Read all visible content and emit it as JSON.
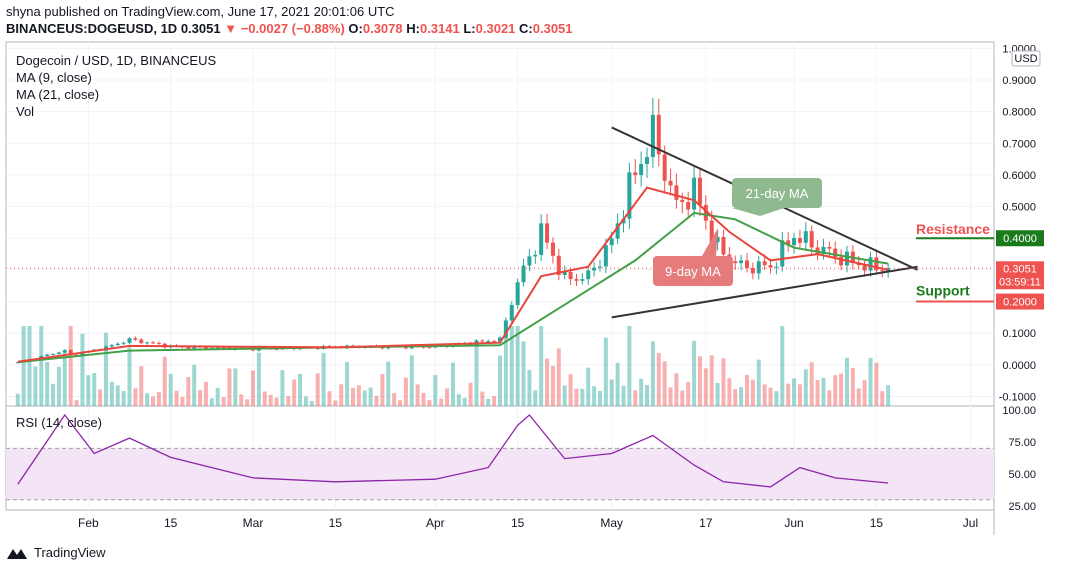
{
  "header": {
    "publisher_line": "shyna published on TradingView.com, June 17, 2021 20:01:06 UTC",
    "symbol": "BINANCEUS:DOGEUSD, 1D",
    "last": "0.3051",
    "change": "−0.0027 (−0.88%)",
    "o_label": "O:",
    "o": "0.3078",
    "h_label": "H:",
    "h": "0.3141",
    "l_label": "L:",
    "l": "0.3021",
    "c_label": "C:",
    "c": "0.3051"
  },
  "legend": {
    "title": "Dogecoin / USD, 1D, BINANCEUS",
    "ma9": "MA (9, close)",
    "ma21": "MA (21, close)",
    "vol": "Vol"
  },
  "currency": "USD",
  "price_badge": {
    "price": "0.3051",
    "countdown": "03:59:11"
  },
  "resistance_badge": "0.4000",
  "support_badge": "0.2000",
  "annotations": {
    "resistance": "Resistance",
    "support": "Support",
    "ma21_callout": "21-day MA",
    "ma9_callout": "9-day MA"
  },
  "rsi_label": "RSI (14, close)",
  "footer_brand": "TradingView",
  "colors": {
    "up": "#26a69a",
    "down": "#ef5350",
    "ma9": "#e8453c",
    "ma21": "#43a047",
    "rsi": "#8e24aa",
    "rsi_band": "#f3e5f5",
    "resistance": "#1b7a1b",
    "support": "#1b7a1b"
  },
  "chart_data": [
    {
      "type": "candlestick",
      "title": "Dogecoin / USD, 1D, BINANCEUS",
      "ylim": [
        -0.13,
        1.02
      ],
      "y_ticks": [
        "1.0000",
        "0.9000",
        "0.8000",
        "0.7000",
        "0.6000",
        "0.5000",
        "0.4000",
        "0.3000",
        "0.2000",
        "0.1000",
        "0.0000",
        "-0.1000"
      ],
      "x_ticks": [
        "Feb",
        "15",
        "Mar",
        "15",
        "Apr",
        "15",
        "May",
        "17",
        "Jun",
        "15",
        "Jul"
      ],
      "close_series": [
        {
          "date": "2021-01-20",
          "close": 0.008
        },
        {
          "date": "2021-01-28",
          "close": 0.045
        },
        {
          "date": "2021-01-29",
          "close": 0.03
        },
        {
          "date": "2021-02-04",
          "close": 0.055
        },
        {
          "date": "2021-02-08",
          "close": 0.08
        },
        {
          "date": "2021-02-15",
          "close": 0.058
        },
        {
          "date": "2021-03-01",
          "close": 0.05
        },
        {
          "date": "2021-03-15",
          "close": 0.057
        },
        {
          "date": "2021-04-01",
          "close": 0.057
        },
        {
          "date": "2021-04-12",
          "close": 0.08
        },
        {
          "date": "2021-04-15",
          "close": 0.26
        },
        {
          "date": "2021-04-19",
          "close": 0.42
        },
        {
          "date": "2021-04-23",
          "close": 0.27
        },
        {
          "date": "2021-04-27",
          "close": 0.28
        },
        {
          "date": "2021-05-01",
          "close": 0.39
        },
        {
          "date": "2021-05-04",
          "close": 0.56
        },
        {
          "date": "2021-05-07",
          "close": 0.69
        },
        {
          "date": "2021-05-08",
          "close": 0.73
        },
        {
          "date": "2021-05-12",
          "close": 0.5
        },
        {
          "date": "2021-05-15",
          "close": 0.55
        },
        {
          "date": "2021-05-19",
          "close": 0.37
        },
        {
          "date": "2021-05-23",
          "close": 0.31
        },
        {
          "date": "2021-05-28",
          "close": 0.31
        },
        {
          "date": "2021-06-01",
          "close": 0.41
        },
        {
          "date": "2021-06-05",
          "close": 0.37
        },
        {
          "date": "2021-06-10",
          "close": 0.33
        },
        {
          "date": "2021-06-14",
          "close": 0.31
        },
        {
          "date": "2021-06-17",
          "close": 0.3051
        }
      ],
      "ma9_series": [
        {
          "date": "2021-01-20",
          "value": 0.01
        },
        {
          "date": "2021-02-08",
          "value": 0.06
        },
        {
          "date": "2021-03-15",
          "value": 0.055
        },
        {
          "date": "2021-04-12",
          "value": 0.07
        },
        {
          "date": "2021-04-19",
          "value": 0.28
        },
        {
          "date": "2021-04-27",
          "value": 0.31
        },
        {
          "date": "2021-05-07",
          "value": 0.56
        },
        {
          "date": "2021-05-15",
          "value": 0.52
        },
        {
          "date": "2021-05-21",
          "value": 0.42
        },
        {
          "date": "2021-05-28",
          "value": 0.33
        },
        {
          "date": "2021-06-05",
          "value": 0.35
        },
        {
          "date": "2021-06-17",
          "value": 0.3
        }
      ],
      "ma21_series": [
        {
          "date": "2021-01-20",
          "value": 0.008
        },
        {
          "date": "2021-02-08",
          "value": 0.045
        },
        {
          "date": "2021-03-15",
          "value": 0.055
        },
        {
          "date": "2021-04-12",
          "value": 0.062
        },
        {
          "date": "2021-04-23",
          "value": 0.19
        },
        {
          "date": "2021-05-05",
          "value": 0.33
        },
        {
          "date": "2021-05-15",
          "value": 0.48
        },
        {
          "date": "2021-05-22",
          "value": 0.46
        },
        {
          "date": "2021-06-01",
          "value": 0.37
        },
        {
          "date": "2021-06-17",
          "value": 0.32
        }
      ],
      "trendlines": [
        {
          "name": "upper",
          "from": {
            "date": "2021-05-01",
            "value": 0.75
          },
          "to": {
            "date": "2021-06-22",
            "value": 0.3
          }
        },
        {
          "name": "lower",
          "from": {
            "date": "2021-05-01",
            "value": 0.15
          },
          "to": {
            "date": "2021-06-22",
            "value": 0.31
          }
        }
      ],
      "levels": [
        {
          "label": "Resistance",
          "value": 0.4
        },
        {
          "label": "Support",
          "value": 0.2
        }
      ],
      "last_price": 0.3051
    },
    {
      "type": "line",
      "title": "RSI (14, close)",
      "ylim": [
        22,
        103
      ],
      "y_ticks": [
        "100.00",
        "75.00",
        "50.00",
        "25.00"
      ],
      "bands": [
        30,
        70
      ],
      "series": [
        {
          "name": "RSI (14, close)",
          "values": [
            {
              "date": "2021-01-20",
              "value": 42
            },
            {
              "date": "2021-01-28",
              "value": 96
            },
            {
              "date": "2021-02-02",
              "value": 66
            },
            {
              "date": "2021-02-08",
              "value": 78
            },
            {
              "date": "2021-02-15",
              "value": 63
            },
            {
              "date": "2021-03-01",
              "value": 47
            },
            {
              "date": "2021-03-15",
              "value": 44
            },
            {
              "date": "2021-04-01",
              "value": 46
            },
            {
              "date": "2021-04-10",
              "value": 55
            },
            {
              "date": "2021-04-15",
              "value": 88
            },
            {
              "date": "2021-04-17",
              "value": 96
            },
            {
              "date": "2021-04-23",
              "value": 62
            },
            {
              "date": "2021-05-01",
              "value": 66
            },
            {
              "date": "2021-05-08",
              "value": 80
            },
            {
              "date": "2021-05-15",
              "value": 57
            },
            {
              "date": "2021-05-20",
              "value": 44
            },
            {
              "date": "2021-05-28",
              "value": 40
            },
            {
              "date": "2021-06-02",
              "value": 55
            },
            {
              "date": "2021-06-08",
              "value": 47
            },
            {
              "date": "2021-06-17",
              "value": 43
            }
          ]
        }
      ]
    }
  ]
}
